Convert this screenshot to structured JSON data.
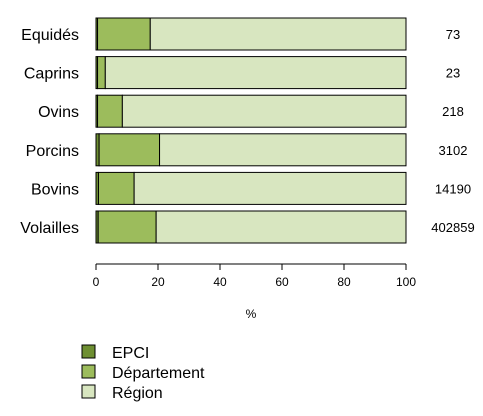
{
  "chart_data": {
    "type": "bar",
    "orientation": "horizontal",
    "stacked": true,
    "normalized_percent": true,
    "categories": [
      "Equidés",
      "Caprins",
      "Ovins",
      "Porcins",
      "Bovins",
      "Volailles"
    ],
    "series": [
      {
        "name": "EPCI",
        "color": "#6e8f32",
        "values": [
          0.5,
          0.5,
          0.5,
          1.0,
          0.8,
          0.7
        ]
      },
      {
        "name": "Département",
        "color": "#9cbc5c",
        "values": [
          17.0,
          2.5,
          8.0,
          19.5,
          11.5,
          18.7
        ]
      },
      {
        "name": "Région",
        "color": "#d8e6c0",
        "values": [
          82.5,
          97.0,
          91.5,
          79.5,
          87.7,
          80.6
        ]
      }
    ],
    "right_labels": [
      "73",
      "23",
      "218",
      "3102",
      "14190",
      "402859"
    ],
    "xlabel": "%",
    "ylabel": "",
    "xlim": [
      0,
      100
    ],
    "xticks": [
      0,
      20,
      40,
      60,
      80,
      100
    ],
    "grid": false,
    "legend_position": "bottom-left"
  }
}
